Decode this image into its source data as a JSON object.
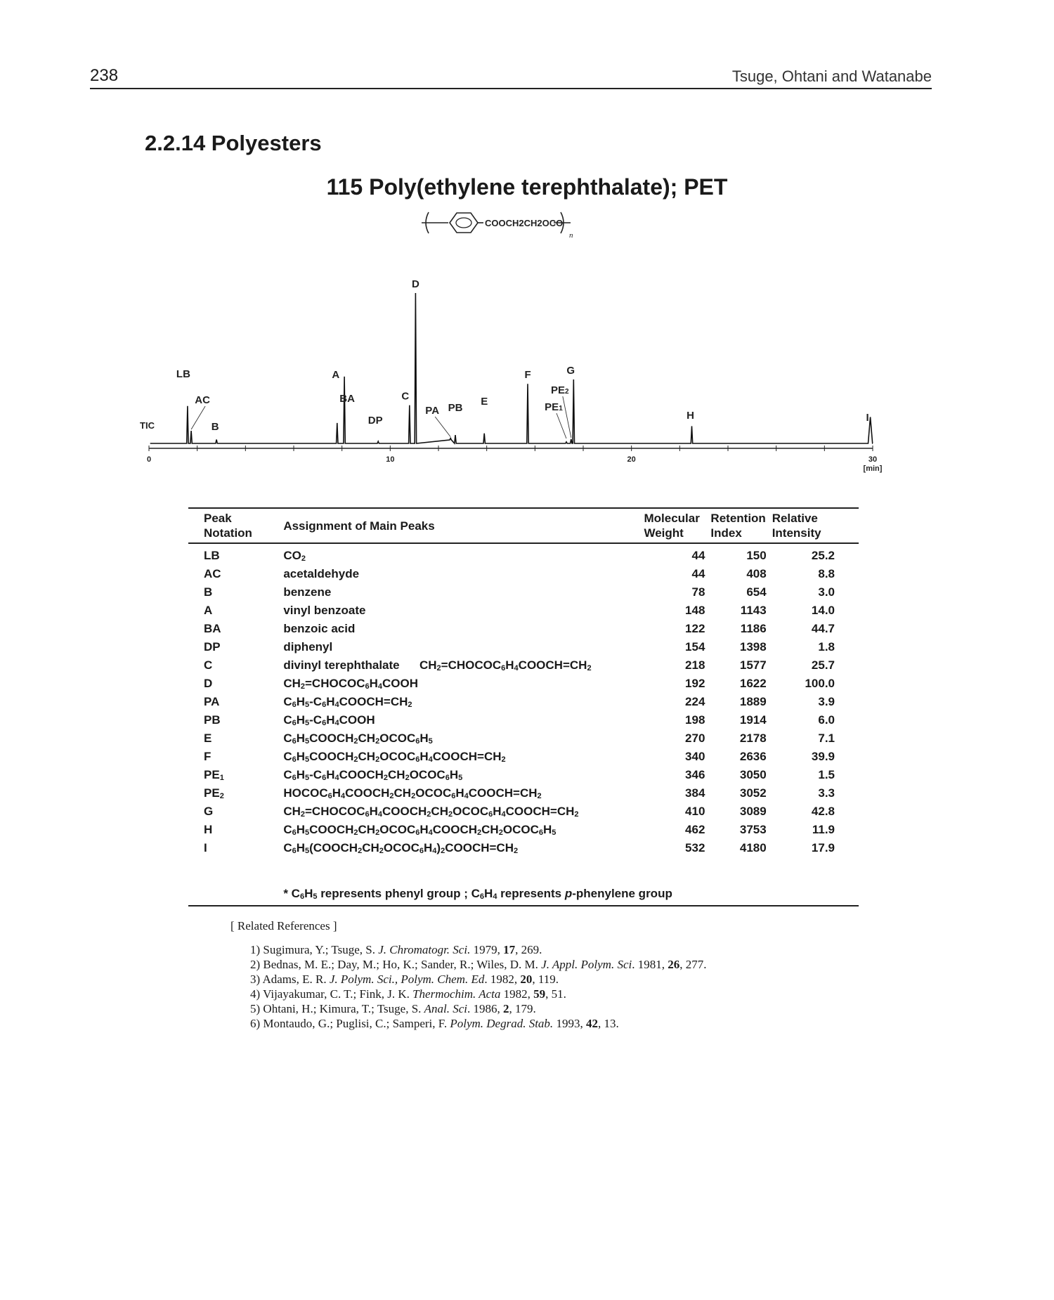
{
  "header": {
    "page_number": "238",
    "running_head": "Tsuge, Ohtani and Watanabe"
  },
  "section": {
    "title": "2.2.14 Polyesters"
  },
  "compound": {
    "title": "115   Poly(ethylene terephthalate); PET",
    "structure_text": "COOCH2CH2OCO",
    "structure_subscript": "n"
  },
  "chart_data": {
    "type": "line",
    "trace_label": "TIC",
    "xlabel": "[min]",
    "xlim": [
      0,
      30
    ],
    "x_ticks": [
      0,
      10,
      20,
      30
    ],
    "peaks": [
      {
        "label": "LB",
        "x": 1.6,
        "height": 25.2
      },
      {
        "label": "AC",
        "x": 1.75,
        "height": 8.8
      },
      {
        "label": "B",
        "x": 2.8,
        "height": 3.0
      },
      {
        "label": "A",
        "x": 7.8,
        "height": 14.0
      },
      {
        "label": "BA",
        "x": 8.1,
        "height": 44.7
      },
      {
        "label": "DP",
        "x": 9.5,
        "height": 1.8
      },
      {
        "label": "C",
        "x": 10.8,
        "height": 25.7
      },
      {
        "label": "D",
        "x": 11.05,
        "height": 100.0
      },
      {
        "label": "PA",
        "x": 12.5,
        "height": 3.9
      },
      {
        "label": "PB",
        "x": 12.7,
        "height": 6.0
      },
      {
        "label": "E",
        "x": 13.9,
        "height": 7.1
      },
      {
        "label": "F",
        "x": 15.7,
        "height": 39.9
      },
      {
        "label": "PE1",
        "x": 17.3,
        "height": 1.5
      },
      {
        "label": "PE2",
        "x": 17.5,
        "height": 3.3
      },
      {
        "label": "G",
        "x": 17.6,
        "height": 42.8
      },
      {
        "label": "H",
        "x": 22.5,
        "height": 11.9
      },
      {
        "label": "I",
        "x": 29.9,
        "height": 17.9
      }
    ]
  },
  "table": {
    "headers": {
      "notation": [
        "Peak",
        "Notation"
      ],
      "assignment": "Assignment of Main Peaks",
      "mw": [
        "Molecular",
        "Weight"
      ],
      "ri": [
        "Retention",
        "Index"
      ],
      "intensity": [
        "Relative",
        "Intensity"
      ]
    },
    "rows": [
      {
        "notation": "LB",
        "assignment": "CO2",
        "mw": "44",
        "ri": "150",
        "intensity": "25.2"
      },
      {
        "notation": "AC",
        "assignment": "acetaldehyde",
        "mw": "44",
        "ri": "408",
        "intensity": "8.8"
      },
      {
        "notation": "B",
        "assignment": "benzene",
        "mw": "78",
        "ri": "654",
        "intensity": "3.0"
      },
      {
        "notation": "A",
        "assignment": "vinyl benzoate",
        "mw": "148",
        "ri": "1143",
        "intensity": "14.0"
      },
      {
        "notation": "BA",
        "assignment": "benzoic acid",
        "mw": "122",
        "ri": "1186",
        "intensity": "44.7"
      },
      {
        "notation": "DP",
        "assignment": "diphenyl",
        "mw": "154",
        "ri": "1398",
        "intensity": "1.8"
      },
      {
        "notation": "C",
        "assignment": "divinyl terephthalate      CH2=CHOCOC6H4COOCH=CH2",
        "mw": "218",
        "ri": "1577",
        "intensity": "25.7"
      },
      {
        "notation": "D",
        "assignment": "CH2=CHOCOC6H4COOH",
        "mw": "192",
        "ri": "1622",
        "intensity": "100.0"
      },
      {
        "notation": "PA",
        "assignment": "C6H5-C6H4COOCH=CH2",
        "mw": "224",
        "ri": "1889",
        "intensity": "3.9"
      },
      {
        "notation": "PB",
        "assignment": "C6H5-C6H4COOH",
        "mw": "198",
        "ri": "1914",
        "intensity": "6.0"
      },
      {
        "notation": "E",
        "assignment": "C6H5COOCH2CH2OCOC6H5",
        "mw": "270",
        "ri": "2178",
        "intensity": "7.1"
      },
      {
        "notation": "F",
        "assignment": "C6H5COOCH2CH2OCOC6H4COOCH=CH2",
        "mw": "340",
        "ri": "2636",
        "intensity": "39.9"
      },
      {
        "notation": "PE1",
        "assignment": "C6H5-C6H4COOCH2CH2OCOC6H5",
        "mw": "346",
        "ri": "3050",
        "intensity": "1.5"
      },
      {
        "notation": "PE2",
        "assignment": "HOCOC6H4COOCH2CH2OCOC6H4COOCH=CH2",
        "mw": "384",
        "ri": "3052",
        "intensity": "3.3"
      },
      {
        "notation": "G",
        "assignment": "CH2=CHOCOC6H4COOCH2CH2OCOC6H4COOCH=CH2",
        "mw": "410",
        "ri": "3089",
        "intensity": "42.8"
      },
      {
        "notation": "H",
        "assignment": "C6H5COOCH2CH2OCOC6H4COOCH2CH2OCOC6H5",
        "mw": "462",
        "ri": "3753",
        "intensity": "11.9"
      },
      {
        "notation": "I",
        "assignment": "C6H5(COOCH2CH2OCOC6H4)2COOCH=CH2",
        "mw": "532",
        "ri": "4180",
        "intensity": "17.9"
      }
    ],
    "footnote": "* C6H5 represents phenyl group ; C6H4 represents p-phenylene group"
  },
  "references": {
    "heading": "[ Related References ]",
    "items": [
      {
        "prefix": "1) Sugimura, Y.; Tsuge, S. ",
        "journal": "J. Chromatogr. Sci.",
        "year": " 1979, ",
        "volume": "17",
        "pages": ", 269."
      },
      {
        "prefix": "2) Bednas, M. E.; Day, M.; Ho, K.; Sander, R.; Wiles, D. M. ",
        "journal": "J. Appl. Polym. Sci",
        "year": ". 1981, ",
        "volume": "26",
        "pages": ", 277."
      },
      {
        "prefix": "3) Adams, E. R. ",
        "journal": "J. Polym. Sci., Polym. Chem. Ed",
        "year": ". 1982, ",
        "volume": "20",
        "pages": ", 119."
      },
      {
        "prefix": "4) Vijayakumar, C. T.; Fink, J. K. ",
        "journal": "Thermochim. Acta",
        "year": " 1982, ",
        "volume": "59",
        "pages": ", 51."
      },
      {
        "prefix": "5) Ohtani, H.; Kimura, T.; Tsuge, S. ",
        "journal": "Anal. Sci",
        "year": ". 1986, ",
        "volume": "2",
        "pages": ", 179."
      },
      {
        "prefix": "6) Montaudo, G.; Puglisi, C.; Samperi, F. ",
        "journal": "Polym. Degrad. Stab.",
        "year": " 1993, ",
        "volume": "42",
        "pages": ", 13."
      }
    ]
  }
}
